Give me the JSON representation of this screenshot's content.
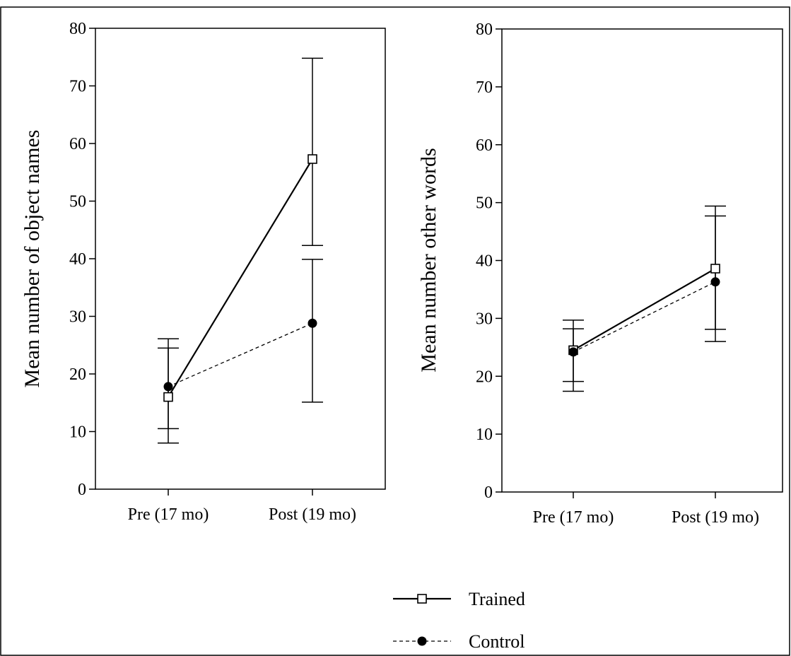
{
  "chart_data": [
    {
      "type": "line",
      "title": "",
      "xlabel": "",
      "ylabel": "Mean number of object names",
      "ylim": [
        0,
        80
      ],
      "yticks": [
        0,
        10,
        20,
        30,
        40,
        50,
        60,
        70,
        80
      ],
      "categories": [
        "Pre (17 mo)",
        "Post (19 mo)"
      ],
      "series": [
        {
          "name": "Trained",
          "marker": "open-square",
          "line": "solid",
          "values": [
            16,
            57.3
          ],
          "err_low": [
            8,
            42.3
          ],
          "err_high": [
            24.5,
            74.8
          ]
        },
        {
          "name": "Control",
          "marker": "filled-circle",
          "line": "dashed",
          "values": [
            17.8,
            28.8
          ],
          "err_low": [
            10.5,
            15.1
          ],
          "err_high": [
            26.1,
            39.9
          ]
        }
      ]
    },
    {
      "type": "line",
      "title": "",
      "xlabel": "",
      "ylabel": "Mean number other words",
      "ylim": [
        0,
        80
      ],
      "yticks": [
        0,
        10,
        20,
        30,
        40,
        50,
        60,
        70,
        80
      ],
      "categories": [
        "Pre (17 mo)",
        "Post (19 mo)"
      ],
      "series": [
        {
          "name": "Trained",
          "marker": "open-square",
          "line": "solid",
          "values": [
            24.5,
            38.6
          ],
          "err_low": [
            17.4,
            28.1
          ],
          "err_high": [
            29.7,
            49.4
          ]
        },
        {
          "name": "Control",
          "marker": "filled-circle",
          "line": "dashed",
          "values": [
            24.2,
            36.3
          ],
          "err_low": [
            19.1,
            26.0
          ],
          "err_high": [
            28.2,
            47.7
          ]
        }
      ]
    }
  ],
  "legend": {
    "position": "bottom-right",
    "entries": [
      {
        "label": "Trained",
        "marker": "open-square",
        "line": "solid"
      },
      {
        "label": "Control",
        "marker": "filled-circle",
        "line": "dashed"
      }
    ]
  }
}
